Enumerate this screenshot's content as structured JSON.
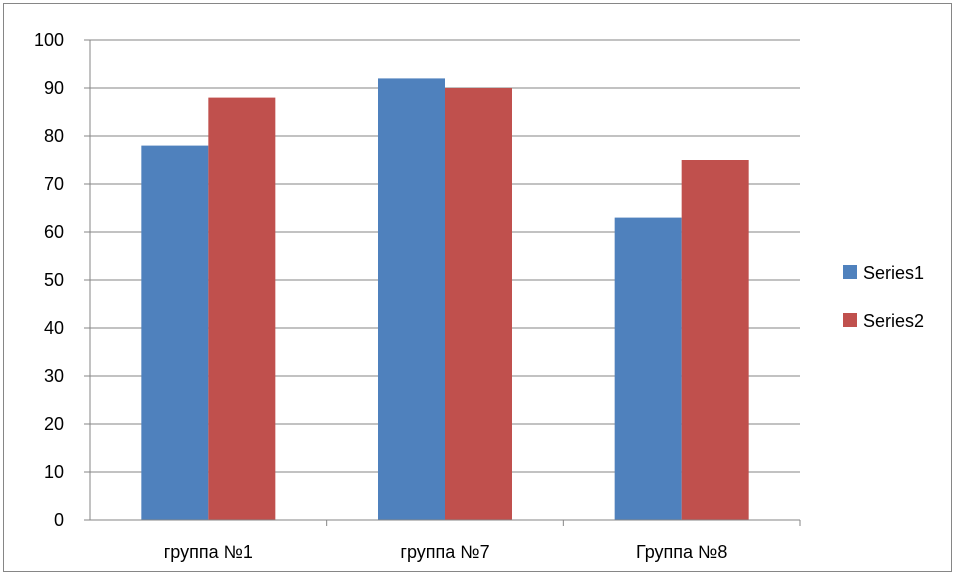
{
  "chart_data": {
    "type": "bar",
    "title": "",
    "xlabel": "",
    "ylabel": "",
    "categories": [
      "группа №1",
      "группа №7",
      "Группа №8"
    ],
    "series": [
      {
        "name": "Series1",
        "values": [
          78,
          92,
          63
        ],
        "color": "#4F81BD"
      },
      {
        "name": "Series2",
        "values": [
          88,
          90,
          75
        ],
        "color": "#C0504D"
      }
    ],
    "ylim": [
      0,
      100
    ],
    "yticks": [
      0,
      10,
      20,
      30,
      40,
      50,
      60,
      70,
      80,
      90,
      100
    ],
    "grid": "horizontal",
    "legend_position": "right"
  }
}
